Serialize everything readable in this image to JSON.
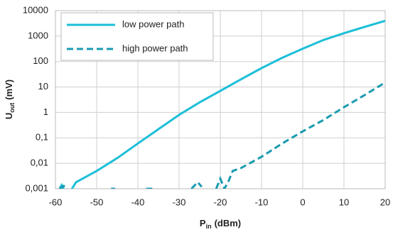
{
  "chart_data": {
    "type": "line",
    "xlabel": [
      "P",
      "in",
      "(dBm)"
    ],
    "ylabel": [
      "U",
      "out",
      "(mV)"
    ],
    "xlim": [
      -60,
      20
    ],
    "xticks": [
      -60,
      -50,
      -40,
      -30,
      -20,
      -10,
      0,
      10,
      20
    ],
    "ylim": [
      0.001,
      10000
    ],
    "log_y": true,
    "yticks": [
      {
        "value": 0.001,
        "label": "0,001"
      },
      {
        "value": 0.01,
        "label": "0,01"
      },
      {
        "value": 0.1,
        "label": "0,1"
      },
      1,
      10,
      100,
      1000,
      10000
    ],
    "grid": true,
    "legend": "upper left",
    "series": [
      {
        "name": "low power path",
        "color": "#1cbfd8",
        "dashed": false,
        "x": [
          -59,
          -58.5,
          -58,
          -57,
          -56,
          -55,
          -50,
          -45,
          -40,
          -35,
          -30,
          -25,
          -20,
          -15,
          -10,
          -5,
          0,
          5,
          10,
          15,
          20
        ],
        "values": [
          0.001,
          0.0014,
          0.001,
          null,
          0.001,
          0.0018,
          0.005,
          0.016,
          0.06,
          0.22,
          0.8,
          2.5,
          7,
          20,
          55,
          140,
          320,
          700,
          1300,
          2300,
          4000
        ]
      },
      {
        "name": "high power path",
        "color": "#1a9bb0",
        "dashed": true,
        "x": [
          -59,
          -58,
          -57,
          -56.5,
          -46.5,
          -45.5,
          -45,
          -38,
          -36.5,
          -35,
          -27,
          -25.5,
          -24.5,
          -24,
          -21,
          -20,
          -19,
          -18,
          -17,
          -15,
          -10,
          -5,
          0,
          5,
          10,
          15,
          20
        ],
        "values": [
          0.001,
          0.0013,
          0.001,
          null,
          0.001,
          0.001,
          null,
          0.001,
          0.001,
          null,
          0.001,
          0.0018,
          0.0012,
          null,
          0.001,
          0.0025,
          0.001,
          0.002,
          0.005,
          0.0065,
          0.018,
          0.06,
          0.18,
          0.5,
          1.6,
          4.8,
          15
        ]
      }
    ]
  }
}
